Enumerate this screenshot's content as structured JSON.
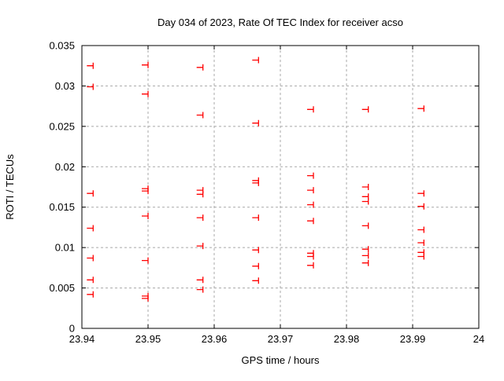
{
  "chart_data": {
    "type": "scatter",
    "title": "Day 034 of 2023, Rate Of TEC Index for receiver acso",
    "xlabel": "GPS time / hours",
    "ylabel": "ROTI / TECUs",
    "xlim": [
      23.94,
      24
    ],
    "ylim": [
      0,
      0.035
    ],
    "x_ticks": [
      23.94,
      23.95,
      23.96,
      23.97,
      23.98,
      23.99,
      24
    ],
    "x_tick_labels": [
      "23.94",
      "23.95",
      "23.96",
      "23.97",
      "23.98",
      "23.99",
      "24"
    ],
    "y_ticks": [
      0,
      0.005,
      0.01,
      0.015,
      0.02,
      0.025,
      0.03,
      0.035
    ],
    "y_tick_labels": [
      "0",
      "0.005",
      "0.01",
      "0.015",
      "0.02",
      "0.025",
      "0.03",
      "0.035"
    ],
    "grid": true,
    "grid_color": "#a8a8a8",
    "axis_color": "#000000",
    "background_color": "#ffffff",
    "legend": "none",
    "series": [
      {
        "name": "ROTI",
        "marker": "plus",
        "color": "#ff0000",
        "points": [
          [
            23.9417,
            0.0325
          ],
          [
            23.9417,
            0.0299
          ],
          [
            23.9417,
            0.0167
          ],
          [
            23.9417,
            0.0124
          ],
          [
            23.9417,
            0.0087
          ],
          [
            23.9417,
            0.006
          ],
          [
            23.9417,
            0.0042
          ],
          [
            23.95,
            0.0326
          ],
          [
            23.95,
            0.029
          ],
          [
            23.95,
            0.0173
          ],
          [
            23.95,
            0.017
          ],
          [
            23.95,
            0.0139
          ],
          [
            23.95,
            0.0084
          ],
          [
            23.95,
            0.004
          ],
          [
            23.95,
            0.0037
          ],
          [
            23.9583,
            0.0323
          ],
          [
            23.9583,
            0.0264
          ],
          [
            23.9583,
            0.0171
          ],
          [
            23.9583,
            0.0166
          ],
          [
            23.9583,
            0.0137
          ],
          [
            23.9583,
            0.0102
          ],
          [
            23.9583,
            0.006
          ],
          [
            23.9583,
            0.0048
          ],
          [
            23.9667,
            0.0332
          ],
          [
            23.9667,
            0.0254
          ],
          [
            23.9667,
            0.0183
          ],
          [
            23.9667,
            0.018
          ],
          [
            23.9667,
            0.0137
          ],
          [
            23.9667,
            0.0097
          ],
          [
            23.9667,
            0.0077
          ],
          [
            23.9667,
            0.0059
          ],
          [
            23.975,
            0.0271
          ],
          [
            23.975,
            0.0189
          ],
          [
            23.975,
            0.0171
          ],
          [
            23.975,
            0.0153
          ],
          [
            23.975,
            0.0133
          ],
          [
            23.975,
            0.0093
          ],
          [
            23.975,
            0.0089
          ],
          [
            23.975,
            0.0078
          ],
          [
            23.9833,
            0.0271
          ],
          [
            23.9833,
            0.0175
          ],
          [
            23.9833,
            0.0163
          ],
          [
            23.9833,
            0.0157
          ],
          [
            23.9833,
            0.0127
          ],
          [
            23.9833,
            0.0098
          ],
          [
            23.9833,
            0.009
          ],
          [
            23.9833,
            0.0081
          ],
          [
            23.9917,
            0.0272
          ],
          [
            23.9917,
            0.0167
          ],
          [
            23.9917,
            0.0151
          ],
          [
            23.9917,
            0.0122
          ],
          [
            23.9917,
            0.0106
          ],
          [
            23.9917,
            0.0094
          ],
          [
            23.9917,
            0.0089
          ]
        ]
      }
    ]
  }
}
